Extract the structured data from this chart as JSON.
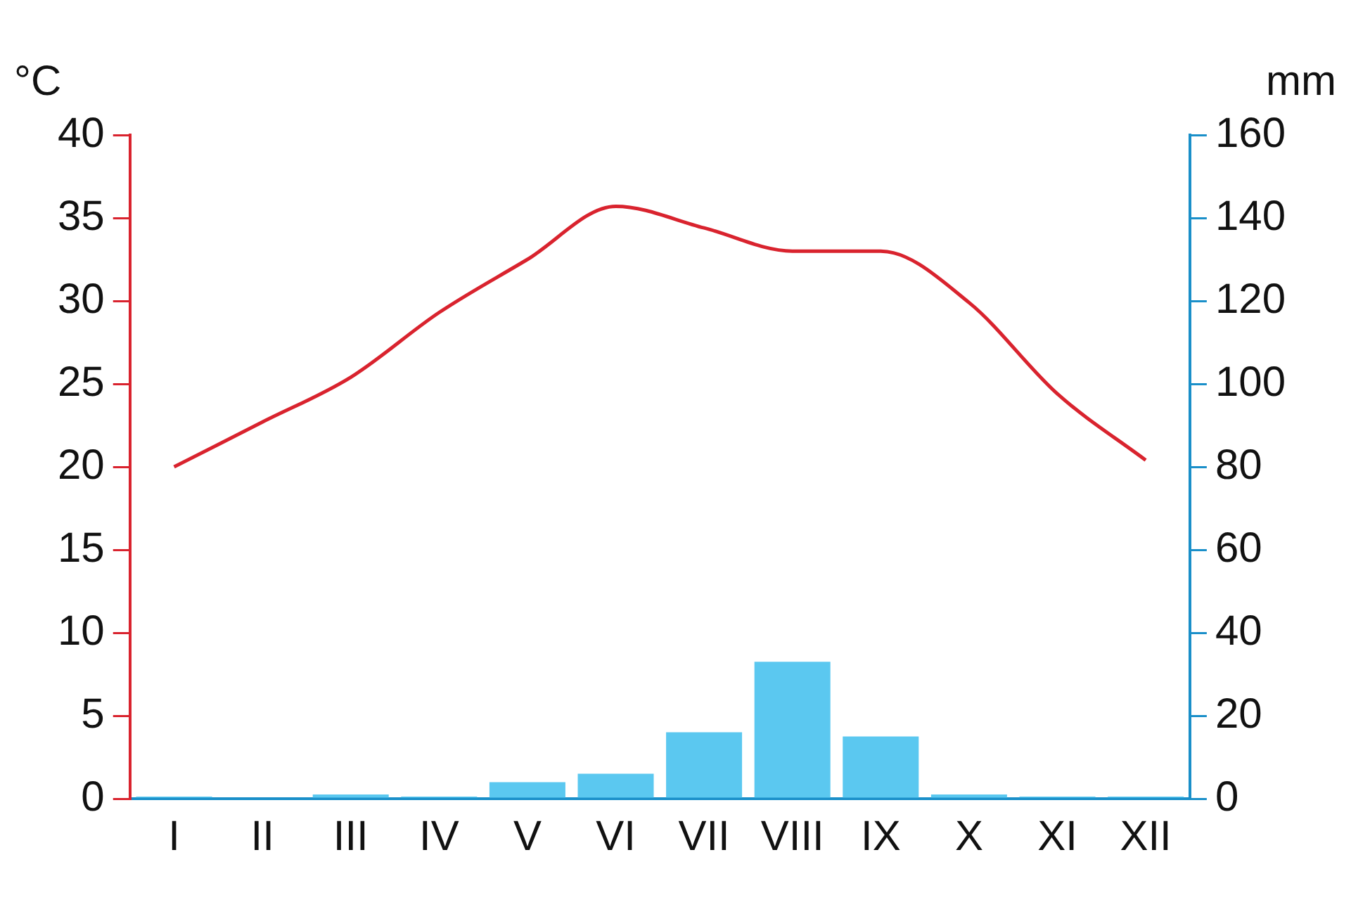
{
  "chart_data": {
    "type": "bar",
    "ylabel": "°C",
    "y2label": "mm",
    "categories": [
      "I",
      "II",
      "III",
      "IV",
      "V",
      "VI",
      "VII",
      "VIII",
      "IX",
      "X",
      "XI",
      "XII"
    ],
    "series": [
      {
        "axis": "y2",
        "color": "#5bc8f0",
        "values": [
          0.5,
          0,
          1,
          0.5,
          4,
          6,
          16,
          33,
          15,
          1,
          0.5,
          0.5
        ]
      },
      {
        "type": "line",
        "axis": "y",
        "color": "#d9232e",
        "values": [
          20,
          22.7,
          25.4,
          29.3,
          32.5,
          35.7,
          34.4,
          33,
          33,
          29.9,
          24.4,
          20.4
        ]
      }
    ],
    "ylim": [
      0,
      40
    ],
    "yticks": [
      0,
      5,
      10,
      15,
      20,
      25,
      30,
      35,
      40
    ],
    "y2lim": [
      0,
      160
    ],
    "y2ticks": [
      0,
      20,
      40,
      60,
      80,
      100,
      120,
      140,
      160
    ],
    "grid": false,
    "legend": false,
    "marker": "none"
  }
}
